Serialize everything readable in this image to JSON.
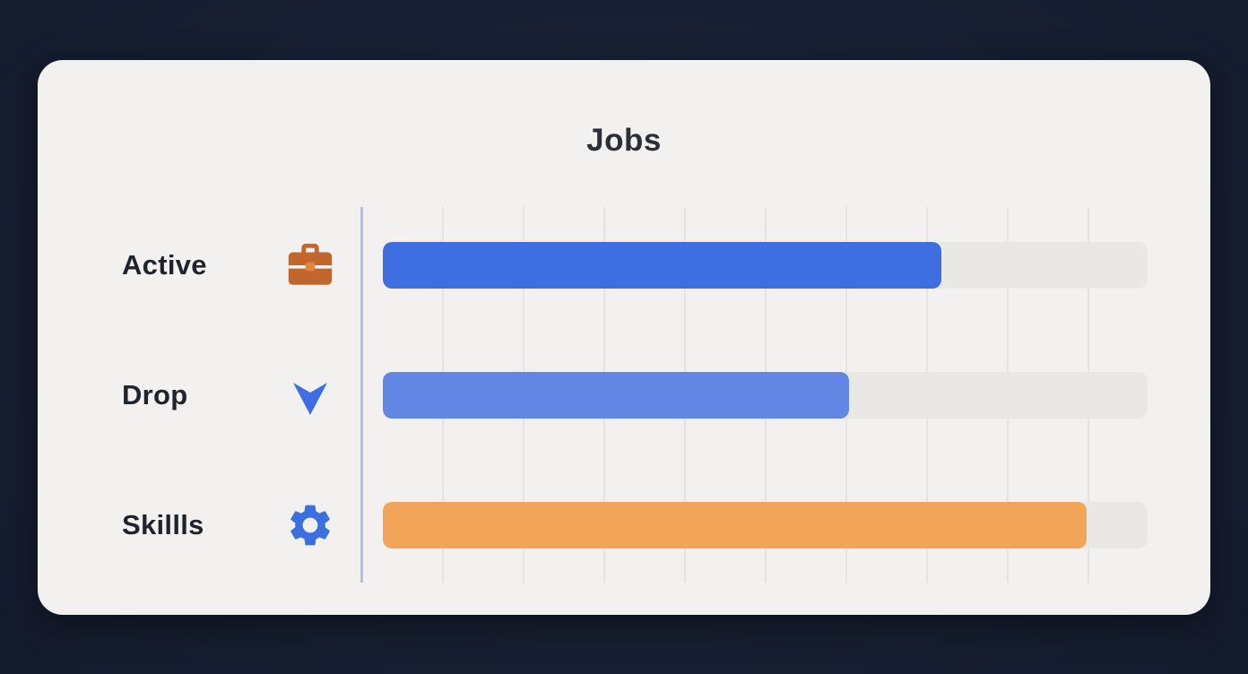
{
  "page": {
    "background": "#131b2d",
    "card_background": "#f2f1ef"
  },
  "chart_data": {
    "type": "bar",
    "orientation": "horizontal",
    "title": "Jobs",
    "categories": [
      "Active",
      "Drop",
      "Skillls"
    ],
    "values": [
      73,
      61,
      92
    ],
    "value_unit": "percent_of_track",
    "xlim": [
      0,
      100
    ],
    "grid": true,
    "legend": false,
    "series_colors": [
      "#3e6edf",
      "#6186e3",
      "#f2a459"
    ],
    "icons": [
      "briefcase-icon",
      "down-arrow-icon",
      "gear-icon"
    ],
    "icon_colors": [
      "#c2672c",
      "#3e6edf",
      "#3b70de"
    ],
    "track_color": "#e9e8e5",
    "axis_color": "#b6c1d2"
  }
}
